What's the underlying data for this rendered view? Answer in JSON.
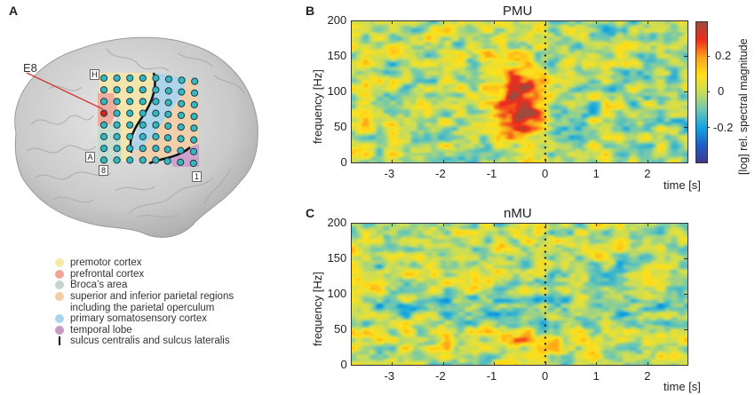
{
  "panels": {
    "a": {
      "label": "A",
      "electrode_label": "E8",
      "grid_corner_labels": {
        "top_left": "H",
        "bottom_left_row": "A",
        "bottom_left_col": "8",
        "bottom_right": "1"
      },
      "legend": [
        {
          "label": "premotor cortex",
          "color": "#f6eaa6",
          "type": "dot"
        },
        {
          "label": "prefrontal cortex",
          "color": "#f0a595",
          "type": "dot"
        },
        {
          "label": "Broca’s area",
          "color": "#c4d6cc",
          "type": "dot"
        },
        {
          "label": "superior and inferior parietal regions",
          "color": "#f4cda5",
          "type": "dot"
        },
        {
          "label": "including the parietal operculum",
          "color": "",
          "type": "indent"
        },
        {
          "label": "primary somatosensory cortex",
          "color": "#a8d4ee",
          "type": "dot"
        },
        {
          "label": "temporal lobe",
          "color": "#c99ac6",
          "type": "dot"
        },
        {
          "label": "sulcus centralis and sulcus lateralis",
          "color": "#111111",
          "type": "bar"
        }
      ]
    },
    "b": {
      "label": "B",
      "title": "PMU"
    },
    "c": {
      "label": "C",
      "title": "nMU"
    }
  },
  "axes": {
    "ylabel": "frequency [Hz]",
    "xlabel": "time [s]",
    "yticks": [
      "200",
      "150",
      "100",
      "50",
      "0"
    ],
    "xticks": [
      "-3",
      "-2",
      "-1",
      "0",
      "1",
      "2"
    ]
  },
  "colorbar": {
    "label": "[log] rel. spectral magnitude",
    "ticks": [
      "0.2",
      "0",
      "-0.2"
    ],
    "colors": [
      "#3d3a8e",
      "#1f5fc8",
      "#12a5e0",
      "#6cc7b4",
      "#c9dd5a",
      "#ffe019",
      "#fba21b",
      "#ef2c1c",
      "#9e4a3c"
    ]
  },
  "chart_data": [
    {
      "type": "heatmap",
      "title": "PMU",
      "panel": "B",
      "xlabel": "time [s]",
      "ylabel": "frequency [Hz]",
      "xlim": [
        -3.8,
        2.8
      ],
      "ylim": [
        0,
        200
      ],
      "xticks": [
        -3,
        -2,
        -1,
        0,
        1,
        2
      ],
      "yticks": [
        0,
        50,
        100,
        150,
        200
      ],
      "event_marker_x": 0,
      "colorbar": {
        "label": "[log] rel. spectral magnitude",
        "range": [
          -0.35,
          0.35
        ],
        "ticks": [
          -0.2,
          0,
          0.2
        ]
      },
      "features": [
        {
          "description": "broadband high-gamma increase before movement onset",
          "time_range": [
            -1.2,
            0
          ],
          "freq_range": [
            40,
            150
          ],
          "peak_value": 0.3,
          "peak_at": {
            "time": -0.4,
            "freq": 70
          }
        },
        {
          "description": "background fluctuations near zero elsewhere",
          "value_range": [
            -0.15,
            0.15
          ]
        }
      ]
    },
    {
      "type": "heatmap",
      "title": "nMU",
      "panel": "C",
      "xlabel": "time [s]",
      "ylabel": "frequency [Hz]",
      "xlim": [
        -3.8,
        2.8
      ],
      "ylim": [
        0,
        200
      ],
      "xticks": [
        -3,
        -2,
        -1,
        0,
        1,
        2
      ],
      "yticks": [
        0,
        50,
        100,
        150,
        200
      ],
      "event_marker_x": 0,
      "colorbar": {
        "label": "[log] rel. spectral magnitude",
        "range": [
          -0.35,
          0.35
        ],
        "ticks": [
          -0.2,
          0,
          0.2
        ]
      },
      "features": [
        {
          "description": "no systematic task-related modulation; mixed slight increases/decreases",
          "value_range": [
            -0.2,
            0.15
          ]
        },
        {
          "description": "slight decrease around 80 Hz",
          "time_range": [
            -2.8,
            2.5
          ],
          "freq_range": [
            60,
            100
          ],
          "value": -0.15
        },
        {
          "description": "slight increase at low frequencies near movement onset",
          "time_range": [
            -1.5,
            1.5
          ],
          "freq_range": [
            10,
            50
          ],
          "value": 0.12
        }
      ]
    }
  ]
}
